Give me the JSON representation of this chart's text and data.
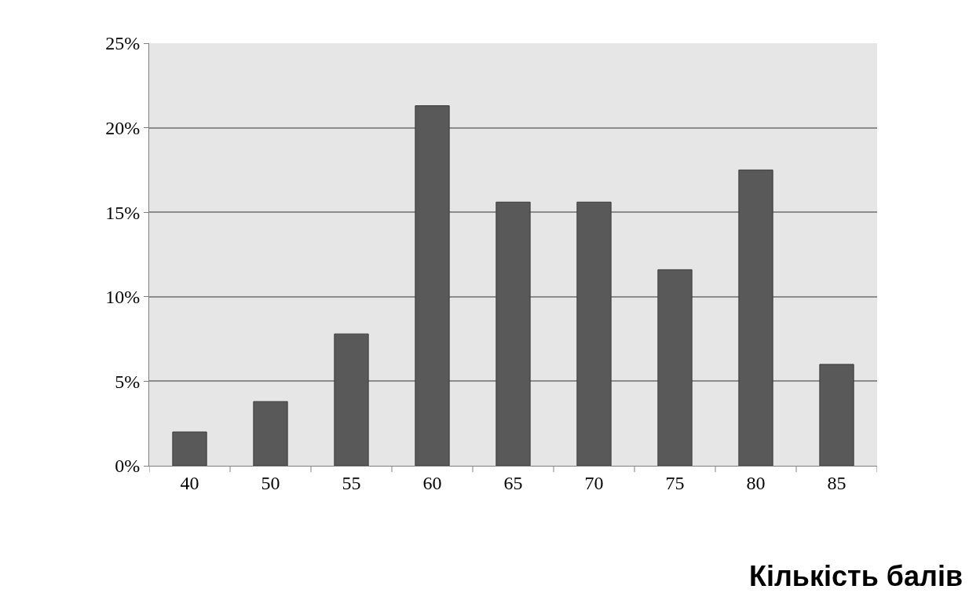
{
  "chart_data": {
    "type": "bar",
    "xlabel": "Кількість балів",
    "categories": [
      "40",
      "50",
      "55",
      "60",
      "65",
      "70",
      "75",
      "80",
      "85"
    ],
    "values": [
      2.0,
      3.8,
      7.8,
      21.3,
      15.6,
      15.6,
      11.6,
      17.5,
      6.0
    ],
    "color": "#595959",
    "ylim": [
      0,
      25
    ],
    "yticks": [
      {
        "value": 0,
        "label": "0%"
      },
      {
        "value": 5,
        "label": "5%"
      },
      {
        "value": 10,
        "label": "10%"
      },
      {
        "value": 15,
        "label": "15%"
      },
      {
        "value": 20,
        "label": "20%"
      },
      {
        "value": 25,
        "label": "25%"
      }
    ],
    "grid": "y"
  }
}
